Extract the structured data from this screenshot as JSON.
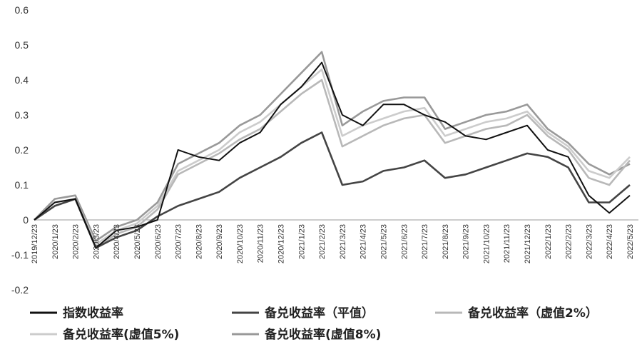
{
  "chart_data": {
    "type": "line",
    "title": "",
    "xlabel": "",
    "ylabel": "",
    "ylim": [
      -0.2,
      0.6
    ],
    "yticks": [
      "-0.2",
      "-0.1",
      "0",
      "0.1",
      "0.2",
      "0.3",
      "0.4",
      "0.5",
      "0.6"
    ],
    "grid": false,
    "legend_position": "bottom",
    "x": [
      "2019/12/23",
      "2020/1/23",
      "2020/2/23",
      "2020/3/23",
      "2020/4/23",
      "2020/5/23",
      "2020/6/23",
      "2020/7/23",
      "2020/8/23",
      "2020/9/23",
      "2020/10/23",
      "2020/11/23",
      "2020/12/23",
      "2021/1/23",
      "2021/2/23",
      "2021/3/23",
      "2021/4/23",
      "2021/5/23",
      "2021/6/23",
      "2021/7/23",
      "2021/8/23",
      "2021/9/23",
      "2021/10/23",
      "2021/11/23",
      "2021/12/23",
      "2022/1/23",
      "2022/2/23",
      "2022/3/23",
      "2022/4/23",
      "2022/5/23"
    ],
    "series": [
      {
        "name": "指数收益率",
        "color": "#111111",
        "values": [
          0.0,
          0.05,
          0.06,
          -0.08,
          -0.03,
          -0.02,
          0.0,
          0.2,
          0.18,
          0.17,
          0.22,
          0.25,
          0.33,
          0.38,
          0.45,
          0.3,
          0.27,
          0.33,
          0.33,
          0.3,
          0.28,
          0.24,
          0.23,
          0.25,
          0.27,
          0.2,
          0.18,
          0.07,
          0.02,
          0.07
        ]
      },
      {
        "name": "备兑收益率（平值）",
        "color": "#444444",
        "values": [
          0.0,
          0.04,
          0.06,
          -0.08,
          -0.05,
          -0.03,
          0.01,
          0.04,
          0.06,
          0.08,
          0.12,
          0.15,
          0.18,
          0.22,
          0.25,
          0.1,
          0.11,
          0.14,
          0.15,
          0.17,
          0.12,
          0.13,
          0.15,
          0.17,
          0.19,
          0.18,
          0.15,
          0.05,
          0.05,
          0.1
        ]
      },
      {
        "name": "备兑收益率（虚值2%）",
        "color": "#b8b8b8",
        "values": [
          0.0,
          0.04,
          0.06,
          -0.08,
          -0.04,
          -0.02,
          0.03,
          0.13,
          0.16,
          0.19,
          0.23,
          0.26,
          0.31,
          0.36,
          0.4,
          0.21,
          0.24,
          0.27,
          0.29,
          0.3,
          0.22,
          0.24,
          0.26,
          0.27,
          0.3,
          0.24,
          0.2,
          0.12,
          0.1,
          0.17
        ]
      },
      {
        "name": "备兑收益率(虚值5%)",
        "color": "#cccccc",
        "values": [
          0.0,
          0.05,
          0.06,
          -0.07,
          -0.03,
          -0.01,
          0.04,
          0.14,
          0.17,
          0.2,
          0.25,
          0.28,
          0.33,
          0.38,
          0.43,
          0.24,
          0.27,
          0.29,
          0.31,
          0.32,
          0.24,
          0.26,
          0.28,
          0.29,
          0.31,
          0.25,
          0.21,
          0.14,
          0.12,
          0.18
        ]
      },
      {
        "name": "备兑收益率(虚值8%)",
        "color": "#999999",
        "values": [
          0.0,
          0.06,
          0.07,
          -0.06,
          -0.02,
          0.0,
          0.05,
          0.16,
          0.19,
          0.22,
          0.27,
          0.3,
          0.36,
          0.42,
          0.48,
          0.27,
          0.31,
          0.34,
          0.35,
          0.35,
          0.26,
          0.28,
          0.3,
          0.31,
          0.33,
          0.26,
          0.22,
          0.16,
          0.13,
          0.16
        ]
      }
    ]
  }
}
